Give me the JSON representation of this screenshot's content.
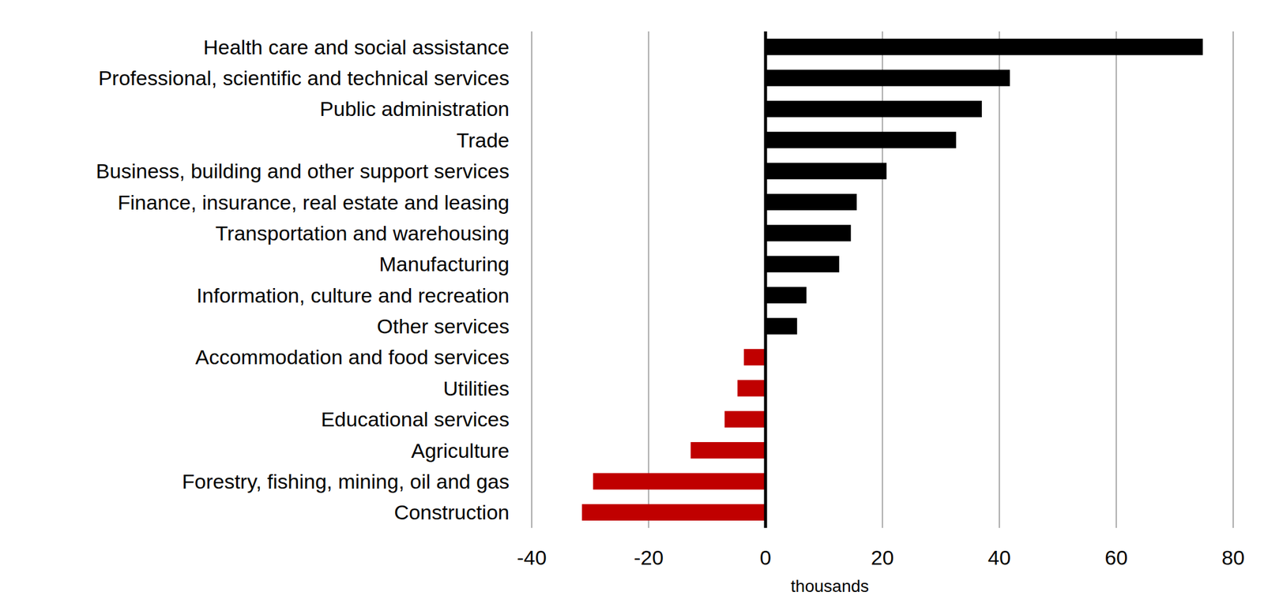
{
  "chart_data": {
    "type": "bar",
    "orientation": "horizontal",
    "categories": [
      "Health care and social assistance",
      "Professional, scientific and technical services",
      "Public administration",
      "Trade",
      "Business, building and other support services",
      "Finance, insurance, real estate and leasing",
      "Transportation and warehousing",
      "Manufacturing",
      "Information, culture and recreation",
      "Other services",
      "Accommodation and food services",
      "Utilities",
      "Educational services",
      "Agriculture",
      "Forestry, fishing, mining, oil and gas",
      "Construction"
    ],
    "values": [
      74.8,
      41.8,
      37,
      32.6,
      20.7,
      15.6,
      14.6,
      12.6,
      7,
      5.4,
      -3.7,
      -4.8,
      -7,
      -12.8,
      -29.5,
      -31.4
    ],
    "colors": [
      "#000000",
      "#000000",
      "#000000",
      "#000000",
      "#000000",
      "#000000",
      "#000000",
      "#000000",
      "#000000",
      "#000000",
      "#c00000",
      "#c00000",
      "#c00000",
      "#c00000",
      "#c00000",
      "#c00000"
    ],
    "xlim": [
      -40,
      80
    ],
    "xticks": [
      -40,
      -20,
      0,
      20,
      40,
      60,
      80
    ],
    "xlabel": "thousands",
    "grid": true
  }
}
